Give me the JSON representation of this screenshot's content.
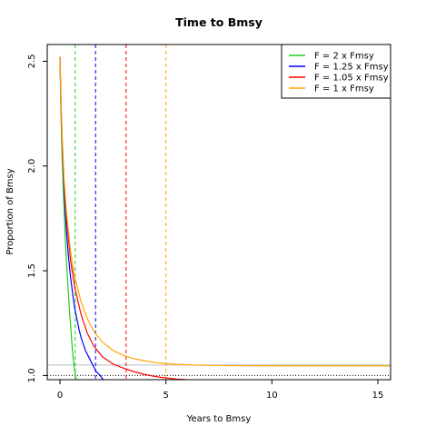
{
  "chart_data": {
    "type": "line",
    "title": "Time to Bmsy",
    "xlabel": "Years to Bmsy",
    "ylabel": "Proportion of Bmsy",
    "xlim": [
      -0.6,
      15.6
    ],
    "ylim": [
      0.98,
      2.58
    ],
    "x_ticks": [
      0,
      5,
      10,
      15
    ],
    "x_tick_labels": [
      "0",
      "5",
      "10",
      "15"
    ],
    "y_ticks": [
      1.0,
      1.5,
      2.0,
      2.5
    ],
    "y_tick_labels": [
      "1.0",
      "1.5",
      "2.0",
      "2.5"
    ],
    "grid": false,
    "legend_position": "top-right",
    "series": [
      {
        "name": "F = 2 x Fmsy",
        "color": "#22cc22",
        "x": [
          0,
          0.03,
          0.06,
          0.1,
          0.15,
          0.2,
          0.25,
          0.3,
          0.35,
          0.4,
          0.45,
          0.5,
          0.55,
          0.6,
          0.65,
          0.7,
          0.75,
          0.8
        ],
        "y": [
          2.52,
          2.34,
          2.2,
          2.06,
          1.91,
          1.78,
          1.66,
          1.56,
          1.47,
          1.39,
          1.31,
          1.24,
          1.17,
          1.11,
          1.06,
          1.02,
          0.99,
          0.97
        ],
        "crossing_x": 0.72
      },
      {
        "name": "F = 1.25 x Fmsy",
        "color": "#0000ff",
        "x": [
          0,
          0.05,
          0.1,
          0.2,
          0.3,
          0.4,
          0.5,
          0.6,
          0.7,
          0.8,
          0.9,
          1.0,
          1.1,
          1.2,
          1.3,
          1.4,
          1.5,
          1.6,
          1.7,
          1.8,
          1.9,
          2.0,
          2.1
        ],
        "y": [
          2.52,
          2.3,
          2.12,
          1.87,
          1.7,
          1.57,
          1.47,
          1.39,
          1.32,
          1.27,
          1.22,
          1.18,
          1.15,
          1.12,
          1.1,
          1.08,
          1.06,
          1.04,
          1.02,
          1.01,
          1.0,
          0.985,
          0.975
        ],
        "crossing_x": 1.68
      },
      {
        "name": "F = 1.05 x Fmsy",
        "color": "#ff0000",
        "x": [
          0,
          0.05,
          0.1,
          0.2,
          0.3,
          0.5,
          0.7,
          1.0,
          1.3,
          1.6,
          2.0,
          2.5,
          3.0,
          3.5,
          4.0,
          4.5,
          5.0,
          5.5,
          6.0,
          7.0,
          8.0,
          10.0,
          12.0,
          15.6
        ],
        "y": [
          2.52,
          2.3,
          2.14,
          1.91,
          1.76,
          1.55,
          1.42,
          1.29,
          1.2,
          1.14,
          1.09,
          1.055,
          1.035,
          1.018,
          1.005,
          0.995,
          0.988,
          0.983,
          0.98,
          0.977,
          0.976,
          0.975,
          0.975,
          0.975
        ],
        "crossing_x": 3.12
      },
      {
        "name": "F = 1 x Fmsy",
        "color": "#ffa500",
        "x": [
          0,
          0.05,
          0.1,
          0.2,
          0.3,
          0.5,
          0.7,
          1.0,
          1.3,
          1.6,
          2.0,
          2.5,
          3.0,
          3.5,
          4.0,
          4.5,
          5.0,
          5.5,
          6.0,
          7.0,
          8.0,
          10.0,
          12.0,
          15.6
        ],
        "y": [
          2.52,
          2.31,
          2.15,
          1.93,
          1.79,
          1.59,
          1.47,
          1.35,
          1.27,
          1.21,
          1.16,
          1.12,
          1.095,
          1.08,
          1.07,
          1.062,
          1.057,
          1.053,
          1.051,
          1.048,
          1.047,
          1.046,
          1.046,
          1.046
        ],
        "crossing_x": 5.0
      }
    ],
    "reference_lines": [
      {
        "axis": "y",
        "value": 1.0,
        "style": "dotted",
        "color": "#000000"
      },
      {
        "axis": "y",
        "value": 1.05,
        "style": "solid",
        "color": "#bbbbbb"
      }
    ]
  }
}
